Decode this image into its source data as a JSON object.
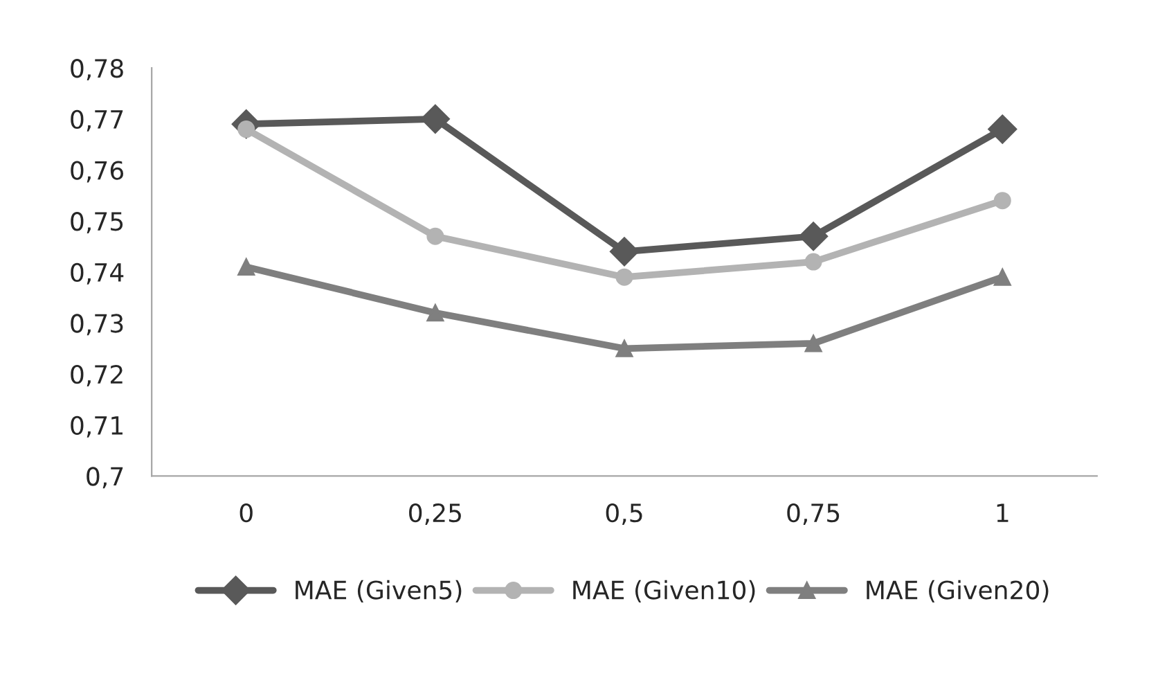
{
  "chart_data": {
    "type": "line",
    "categories": [
      "0",
      "0,25",
      "0,5",
      "0,75",
      "1"
    ],
    "series": [
      {
        "name": "MAE (Given5)",
        "color": "#595959",
        "marker": "diamond",
        "values": [
          0.769,
          0.77,
          0.744,
          0.747,
          0.768
        ]
      },
      {
        "name": "MAE (Given10)",
        "color": "#b3b3b3",
        "marker": "circle",
        "values": [
          0.768,
          0.747,
          0.739,
          0.742,
          0.754
        ]
      },
      {
        "name": "MAE (Given20)",
        "color": "#7f7f7f",
        "marker": "triangle",
        "values": [
          0.741,
          0.732,
          0.725,
          0.726,
          0.739
        ]
      }
    ],
    "ylim": [
      0.7,
      0.78
    ],
    "yticks": [
      {
        "value": 0.7,
        "label": "0,7"
      },
      {
        "value": 0.71,
        "label": "0,71"
      },
      {
        "value": 0.72,
        "label": "0,72"
      },
      {
        "value": 0.73,
        "label": "0,73"
      },
      {
        "value": 0.74,
        "label": "0,74"
      },
      {
        "value": 0.75,
        "label": "0,75"
      },
      {
        "value": 0.76,
        "label": "0,76"
      },
      {
        "value": 0.77,
        "label": "0,77"
      },
      {
        "value": 0.78,
        "label": "0,78"
      }
    ],
    "grid": false,
    "legend": "bottom"
  }
}
